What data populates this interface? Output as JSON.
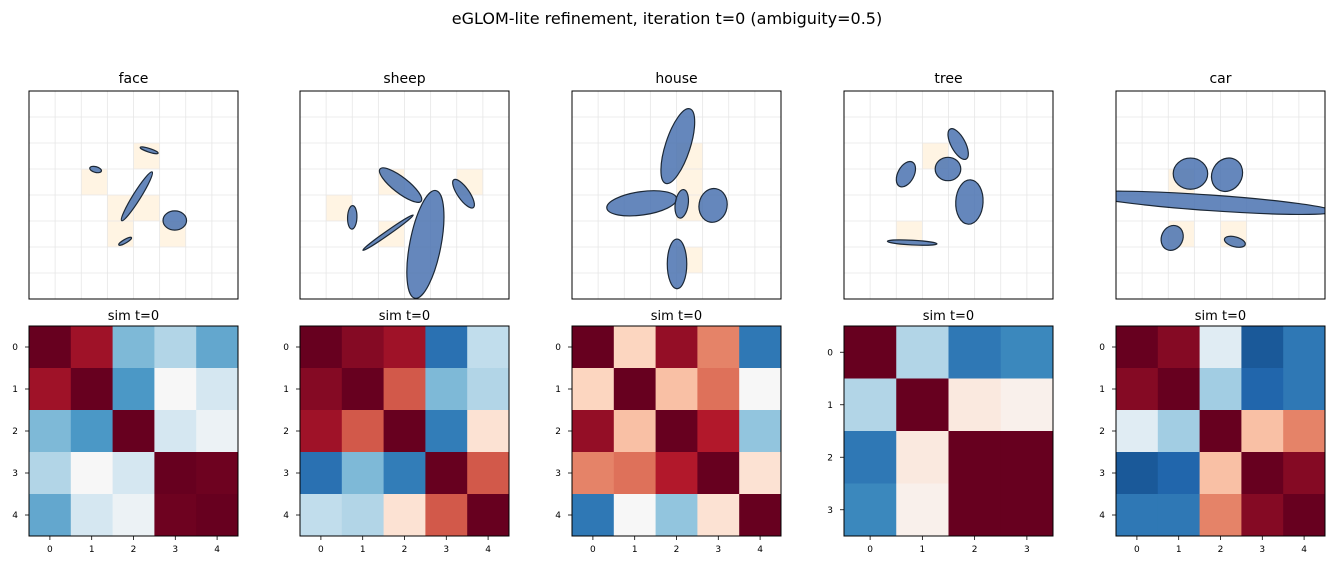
{
  "figure": {
    "title": "eGLOM-lite refinement, iteration t=0 (ambiguity=0.5)"
  },
  "chart_data": [
    {
      "type": "scatter",
      "title": "face",
      "xlim": [
        0,
        8
      ],
      "ylim": [
        0,
        8
      ],
      "grid": true,
      "highlighted_cells": [
        [
          4,
          5
        ],
        [
          2,
          4
        ],
        [
          3,
          3
        ],
        [
          4,
          3
        ],
        [
          3,
          2
        ],
        [
          5,
          2
        ]
      ],
      "ellipses": [
        {
          "cx": 4.6,
          "cy": 5.72,
          "w": 0.72,
          "h": 0.14,
          "angle": -18
        },
        {
          "cx": 2.55,
          "cy": 4.98,
          "w": 0.46,
          "h": 0.22,
          "angle": -15
        },
        {
          "cx": 4.13,
          "cy": 3.95,
          "w": 2.2,
          "h": 0.3,
          "angle": 58
        },
        {
          "cx": 5.58,
          "cy": 3.02,
          "w": 0.9,
          "h": 0.74,
          "angle": 0
        },
        {
          "cx": 3.68,
          "cy": 2.22,
          "w": 0.56,
          "h": 0.14,
          "angle": 30
        }
      ]
    },
    {
      "type": "heatmap",
      "title": "sim  t=0",
      "x_ticks": [
        "0",
        "1",
        "2",
        "3",
        "4"
      ],
      "y_ticks": [
        "0",
        "1",
        "2",
        "3",
        "4"
      ],
      "colormap": "RdBu_r",
      "vmin": -1,
      "vmax": 1,
      "values": [
        [
          1.0,
          0.85,
          -0.45,
          -0.3,
          -0.52
        ],
        [
          0.85,
          1.0,
          -0.58,
          0.0,
          -0.18
        ],
        [
          -0.45,
          -0.58,
          1.0,
          -0.18,
          -0.06
        ],
        [
          -0.3,
          0.0,
          -0.18,
          1.0,
          0.98
        ],
        [
          -0.52,
          -0.18,
          -0.06,
          0.98,
          1.0
        ]
      ]
    },
    {
      "type": "scatter",
      "title": "sheep",
      "xlim": [
        0,
        8
      ],
      "ylim": [
        0,
        8
      ],
      "grid": true,
      "highlighted_cells": [
        [
          3,
          4
        ],
        [
          6,
          4
        ],
        [
          1,
          3
        ],
        [
          3,
          2
        ]
      ],
      "ellipses": [
        {
          "cx": 3.85,
          "cy": 4.38,
          "w": 2.0,
          "h": 0.6,
          "angle": -38
        },
        {
          "cx": 6.26,
          "cy": 4.05,
          "w": 1.3,
          "h": 0.45,
          "angle": -55
        },
        {
          "cx": 2.0,
          "cy": 3.14,
          "w": 0.9,
          "h": 0.36,
          "angle": 88
        },
        {
          "cx": 3.37,
          "cy": 2.55,
          "w": 2.35,
          "h": 0.16,
          "angle": 35
        },
        {
          "cx": 4.8,
          "cy": 2.1,
          "w": 4.2,
          "h": 1.2,
          "angle": 79
        }
      ]
    },
    {
      "type": "heatmap",
      "title": "sim  t=0",
      "x_ticks": [
        "0",
        "1",
        "2",
        "3",
        "4"
      ],
      "y_ticks": [
        "0",
        "1",
        "2",
        "3",
        "4"
      ],
      "colormap": "RdBu_r",
      "vmin": -1,
      "vmax": 1,
      "values": [
        [
          1.0,
          0.92,
          0.85,
          -0.75,
          -0.25
        ],
        [
          0.92,
          1.0,
          0.62,
          -0.45,
          -0.3
        ],
        [
          0.85,
          0.62,
          1.0,
          -0.7,
          0.15
        ],
        [
          -0.75,
          -0.45,
          -0.7,
          1.0,
          0.62
        ],
        [
          -0.25,
          -0.3,
          0.15,
          0.62,
          1.0
        ]
      ]
    },
    {
      "type": "scatter",
      "title": "house",
      "xlim": [
        0,
        8
      ],
      "ylim": [
        0,
        8
      ],
      "grid": true,
      "highlighted_cells": [
        [
          4,
          5
        ],
        [
          4,
          4
        ],
        [
          4,
          3
        ],
        [
          4,
          1
        ]
      ],
      "ellipses": [
        {
          "cx": 4.05,
          "cy": 5.88,
          "w": 3.0,
          "h": 0.95,
          "angle": 72
        },
        {
          "cx": 2.67,
          "cy": 3.68,
          "w": 2.7,
          "h": 0.9,
          "angle": 8
        },
        {
          "cx": 4.2,
          "cy": 3.66,
          "w": 1.1,
          "h": 0.5,
          "angle": 82
        },
        {
          "cx": 5.4,
          "cy": 3.6,
          "w": 1.3,
          "h": 1.08,
          "angle": 80
        },
        {
          "cx": 4.02,
          "cy": 1.35,
          "w": 1.9,
          "h": 0.75,
          "angle": 90
        }
      ]
    },
    {
      "type": "heatmap",
      "title": "sim  t=0",
      "x_ticks": [
        "0",
        "1",
        "2",
        "3",
        "4"
      ],
      "y_ticks": [
        "0",
        "1",
        "2",
        "3",
        "4"
      ],
      "colormap": "RdBu_r",
      "vmin": -1,
      "vmax": 1,
      "values": [
        [
          1.0,
          0.22,
          0.88,
          0.5,
          -0.72
        ],
        [
          0.22,
          1.0,
          0.3,
          0.55,
          0.0
        ],
        [
          0.88,
          0.3,
          1.0,
          0.8,
          -0.4
        ],
        [
          0.5,
          0.55,
          0.8,
          1.0,
          0.15
        ],
        [
          -0.72,
          0.0,
          -0.4,
          0.15,
          1.0
        ]
      ]
    },
    {
      "type": "scatter",
      "title": "tree",
      "xlim": [
        0,
        8
      ],
      "ylim": [
        0,
        8
      ],
      "grid": true,
      "highlighted_cells": [
        [
          3,
          5
        ],
        [
          2,
          2
        ]
      ],
      "ellipses": [
        {
          "cx": 4.37,
          "cy": 5.96,
          "w": 1.3,
          "h": 0.55,
          "angle": -62
        },
        {
          "cx": 2.37,
          "cy": 4.8,
          "w": 1.05,
          "h": 0.62,
          "angle": 62
        },
        {
          "cx": 3.98,
          "cy": 5.0,
          "w": 0.98,
          "h": 0.9,
          "angle": 0
        },
        {
          "cx": 4.8,
          "cy": 3.73,
          "w": 1.7,
          "h": 1.05,
          "angle": 87
        },
        {
          "cx": 2.61,
          "cy": 2.17,
          "w": 1.9,
          "h": 0.18,
          "angle": -3
        }
      ]
    },
    {
      "type": "heatmap",
      "title": "sim  t=0",
      "x_ticks": [
        "0",
        "1",
        "2",
        "3"
      ],
      "y_ticks": [
        "0",
        "1",
        "2",
        "3"
      ],
      "colormap": "RdBu_r",
      "vmin": -1,
      "vmax": 1,
      "values": [
        [
          1.0,
          -0.3,
          -0.72,
          -0.65
        ],
        [
          -0.3,
          1.0,
          0.1,
          0.05
        ],
        [
          -0.72,
          0.1,
          1.0,
          1.0
        ],
        [
          -0.65,
          0.05,
          1.0,
          1.0
        ]
      ]
    },
    {
      "type": "scatter",
      "title": "car",
      "xlim": [
        0,
        8
      ],
      "ylim": [
        0,
        8
      ],
      "grid": true,
      "highlighted_cells": [
        [
          2,
          4
        ],
        [
          2,
          2
        ],
        [
          4,
          2
        ]
      ],
      "ellipses": [
        {
          "cx": 2.85,
          "cy": 4.82,
          "w": 1.32,
          "h": 1.2,
          "angle": 0
        },
        {
          "cx": 4.25,
          "cy": 4.78,
          "w": 1.32,
          "h": 1.15,
          "angle": 60
        },
        {
          "cx": 3.6,
          "cy": 3.7,
          "w": 9.5,
          "h": 0.6,
          "angle": -4
        },
        {
          "cx": 2.15,
          "cy": 2.35,
          "w": 0.98,
          "h": 0.82,
          "angle": 65
        },
        {
          "cx": 4.55,
          "cy": 2.2,
          "w": 0.82,
          "h": 0.38,
          "angle": -15
        }
      ]
    },
    {
      "type": "heatmap",
      "title": "sim  t=0",
      "x_ticks": [
        "0",
        "1",
        "2",
        "3",
        "4"
      ],
      "y_ticks": [
        "0",
        "1",
        "2",
        "3",
        "4"
      ],
      "colormap": "RdBu_r",
      "vmin": -1,
      "vmax": 1,
      "values": [
        [
          1.0,
          0.92,
          -0.12,
          -0.85,
          -0.72
        ],
        [
          0.92,
          1.0,
          -0.35,
          -0.8,
          -0.72
        ],
        [
          -0.12,
          -0.35,
          1.0,
          0.3,
          0.5
        ],
        [
          -0.85,
          -0.8,
          0.3,
          1.0,
          0.92
        ],
        [
          -0.72,
          -0.72,
          0.5,
          0.92,
          1.0
        ]
      ]
    }
  ],
  "colors": {
    "ellipse_fill": "#4a72b0",
    "ellipse_edge": "#1c2836",
    "highlight_cell": "#fff4e3",
    "grid": "#e6e6e6"
  }
}
